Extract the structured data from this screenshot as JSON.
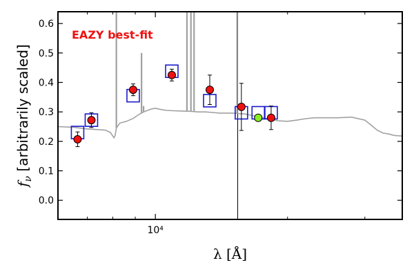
{
  "chart_data": {
    "type": "scatter",
    "annotation": "EAZY best-fit",
    "xlabel": "λ [Å]",
    "ylabel": "f_ν [arbitrarily scaled]",
    "xscale": "log",
    "xlim": [
      6000,
      36500
    ],
    "ylim": [
      -0.065,
      0.64
    ],
    "yticks": [
      0.0,
      0.1,
      0.2,
      0.3,
      0.4,
      0.5,
      0.6
    ],
    "ytick_labels": [
      "0.0",
      "0.1",
      "0.2",
      "0.3",
      "0.4",
      "0.5",
      "0.6"
    ],
    "xtick_major": [
      {
        "value": 10000,
        "label": "10⁴"
      }
    ],
    "vertical_line_x": 15400,
    "colors": {
      "model": "#a0a0a0",
      "observed": "#ee1111",
      "model_photometry": "#1a1acc",
      "highlight_point": "#88ee22",
      "annotation": "#ee1111"
    },
    "series": [
      {
        "role": "model_sed",
        "x": [
          6000,
          6500,
          7000,
          7400,
          7700,
          7900,
          8050,
          8100,
          8150,
          8300,
          8600,
          8900,
          9150,
          9400,
          9600,
          9800,
          10000,
          10300,
          10600,
          11000,
          11500,
          12000,
          12500,
          13000,
          13500,
          14000,
          15000,
          16000,
          17000,
          18000,
          19000,
          20000,
          21000,
          22000,
          23000,
          24000,
          26000,
          28000,
          30000,
          31000,
          32000,
          33000,
          34000,
          35000,
          36500
        ],
        "y": [
          0.25,
          0.248,
          0.242,
          0.24,
          0.238,
          0.23,
          0.212,
          0.22,
          0.245,
          0.262,
          0.268,
          0.278,
          0.29,
          0.3,
          0.305,
          0.31,
          0.312,
          0.308,
          0.305,
          0.304,
          0.303,
          0.302,
          0.3,
          0.3,
          0.298,
          0.296,
          0.296,
          0.293,
          0.285,
          0.277,
          0.27,
          0.268,
          0.272,
          0.277,
          0.28,
          0.28,
          0.28,
          0.282,
          0.272,
          0.255,
          0.238,
          0.228,
          0.225,
          0.22,
          0.218
        ]
      },
      {
        "role": "emission_lines",
        "lines": [
          {
            "x": 8150,
            "top": 0.64
          },
          {
            "x": 9300,
            "top": 0.5
          },
          {
            "x": 9400,
            "top": 0.32
          },
          {
            "x": 11800,
            "top": 0.64
          },
          {
            "x": 12050,
            "top": 0.64
          },
          {
            "x": 12250,
            "top": 0.64
          },
          {
            "x": 15350,
            "top": 0.64
          }
        ]
      },
      {
        "role": "model_photometry",
        "x": [
          6650,
          7150,
          8900,
          10900,
          13300,
          15700,
          17150,
          18350
        ],
        "y": [
          0.23,
          0.272,
          0.355,
          0.438,
          0.338,
          0.297,
          0.297,
          0.297
        ]
      },
      {
        "role": "observed",
        "x": [
          6650,
          7150,
          8900,
          10900,
          13300,
          15700,
          17150,
          18350
        ],
        "y": [
          0.207,
          0.272,
          0.375,
          0.425,
          0.375,
          0.317,
          0.28,
          0.28
        ],
        "yerr": [
          0.025,
          0.025,
          0.02,
          0.02,
          0.05,
          0.08,
          0.01,
          0.04
        ]
      }
    ],
    "highlighted_point_index": 6
  }
}
